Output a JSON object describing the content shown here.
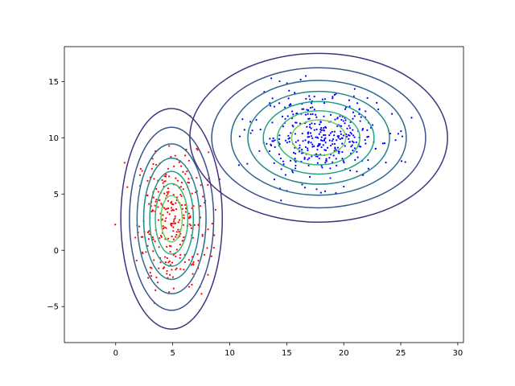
{
  "chart_data": {
    "type": "scatter",
    "title": "",
    "xlabel": "",
    "ylabel": "",
    "xlim": [
      -4.5,
      30.5
    ],
    "ylim": [
      -8.2,
      18.1
    ],
    "x_ticks": [
      0,
      5,
      10,
      15,
      20,
      25,
      30
    ],
    "y_ticks": [
      -5,
      0,
      5,
      10,
      15
    ],
    "x_tick_labels": [
      "0",
      "5",
      "10",
      "15",
      "20",
      "25",
      "30"
    ],
    "y_tick_labels": [
      "−5",
      "0",
      "5",
      "10",
      "15"
    ],
    "grid": false,
    "legend": "none",
    "clusters": [
      {
        "color": "#ff0000",
        "center": [
          5,
          2.7
        ],
        "spread": [
          1.55,
          3.1
        ],
        "points": 300
      },
      {
        "color": "#0000ff",
        "center": [
          17.8,
          10
        ],
        "spread": [
          2.8,
          1.85
        ],
        "points": 380
      }
    ],
    "contours": {
      "gaussians": [
        {
          "center": [
            4.9,
            2.8
          ],
          "radius_x": 4.45,
          "radius_y": 9.8
        },
        {
          "center": [
            17.8,
            10.0
          ],
          "radius_x": 11.3,
          "radius_y": 7.5
        }
      ],
      "levels": [
        1.0,
        0.83,
        0.68,
        0.55,
        0.43,
        0.32,
        0.21
      ],
      "colors": [
        "#46317e",
        "#3b528b",
        "#31688e",
        "#26838f",
        "#1f9e89",
        "#35b779",
        "#6ece58"
      ]
    }
  }
}
